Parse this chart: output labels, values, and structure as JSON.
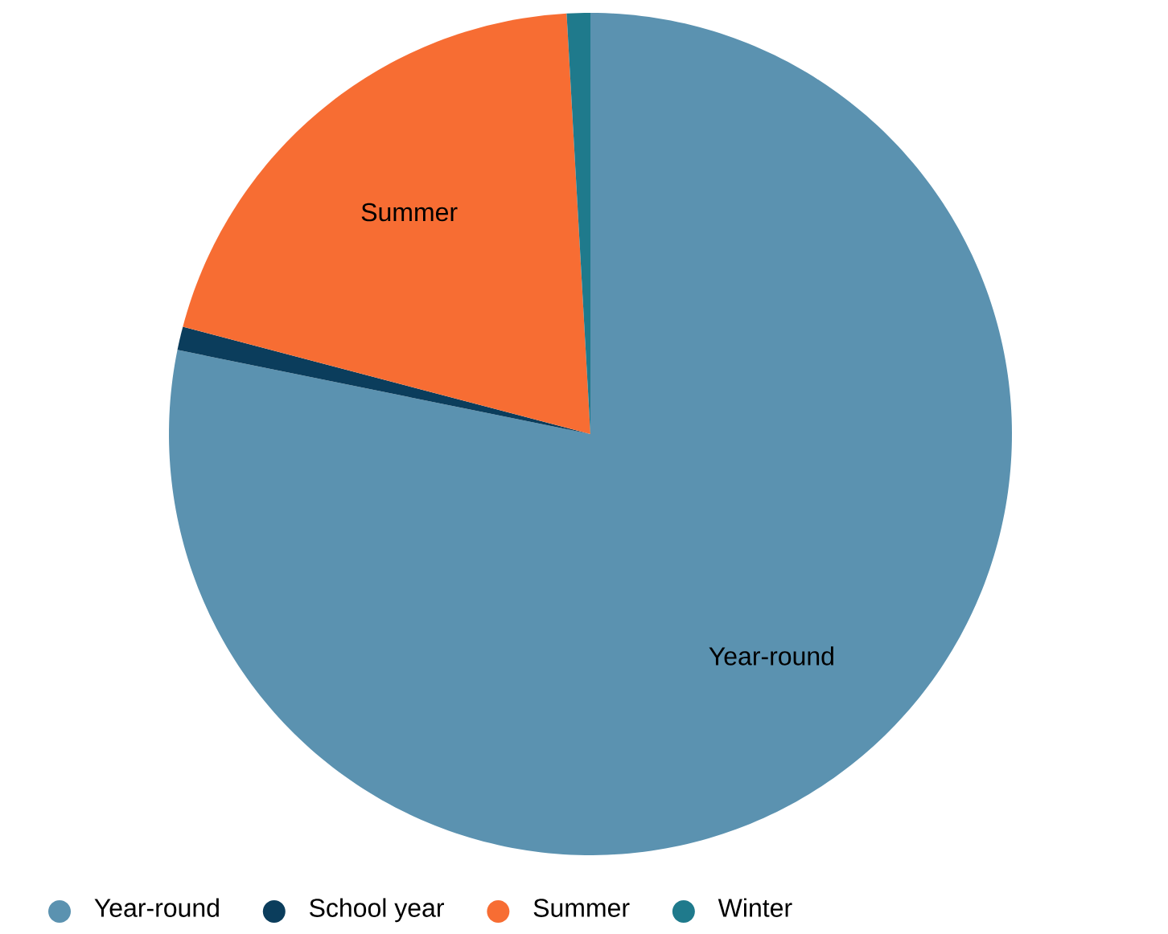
{
  "chart_data": {
    "type": "pie",
    "categories": [
      "Year-round",
      "School year",
      "Summer",
      "Winter"
    ],
    "values": [
      78.2,
      0.9,
      20.0,
      0.9
    ],
    "colors": [
      "#5b92b0",
      "#0b3d5c",
      "#f76d33",
      "#1f7a8c"
    ],
    "legend": "bottom"
  }
}
